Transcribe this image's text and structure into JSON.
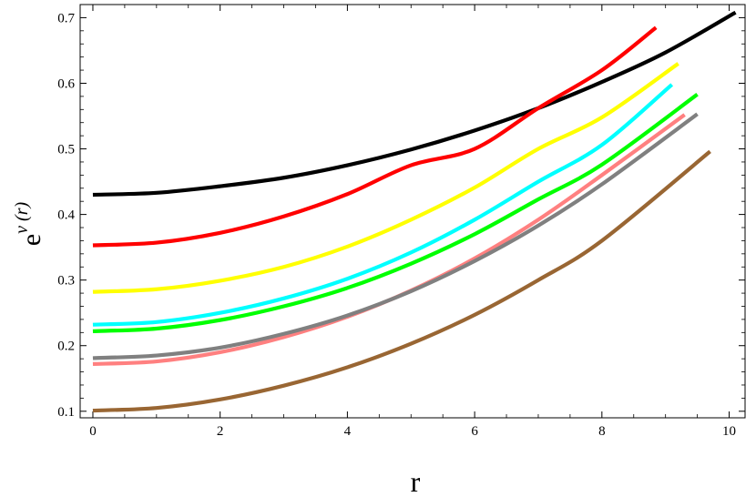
{
  "chart_data": {
    "type": "line",
    "title": "",
    "xlabel": "r",
    "ylabel": "e^{ν(r)}",
    "ylabel_base": "e",
    "ylabel_exponent": "ν (r)",
    "xlim": [
      -0.2,
      10.25
    ],
    "ylim": [
      0.09,
      0.72
    ],
    "xticks": [
      0,
      2,
      4,
      6,
      8,
      10
    ],
    "yticks": [
      0.1,
      0.2,
      0.3,
      0.4,
      0.5,
      0.6,
      0.7
    ],
    "xtick_labels": [
      "0",
      "2",
      "4",
      "6",
      "8",
      "10"
    ],
    "ytick_labels": [
      "0.1",
      "0.2",
      "0.3",
      "0.4",
      "0.5",
      "0.6",
      "0.7"
    ],
    "grid": false,
    "legend": "none",
    "series": [
      {
        "color": "#000000",
        "x": [
          0,
          1,
          2,
          3,
          4,
          5,
          6,
          7,
          8,
          9,
          10.1
        ],
        "y": [
          0.43,
          0.433,
          0.443,
          0.456,
          0.475,
          0.499,
          0.528,
          0.562,
          0.602,
          0.647,
          0.708
        ]
      },
      {
        "color": "#ff0000",
        "x": [
          0,
          1,
          2,
          3,
          4,
          5,
          6,
          7,
          8,
          8.85
        ],
        "y": [
          0.353,
          0.357,
          0.372,
          0.397,
          0.431,
          0.475,
          0.5,
          0.562,
          0.62,
          0.685
        ]
      },
      {
        "color": "#ffff00",
        "x": [
          0,
          1,
          2,
          3,
          4,
          5,
          6,
          7,
          8,
          9.2
        ],
        "y": [
          0.282,
          0.286,
          0.299,
          0.32,
          0.351,
          0.392,
          0.441,
          0.5,
          0.548,
          0.63
        ]
      },
      {
        "color": "#00ffff",
        "x": [
          0,
          1,
          2,
          3,
          4,
          5,
          6,
          7,
          8,
          9.1
        ],
        "y": [
          0.232,
          0.236,
          0.25,
          0.272,
          0.302,
          0.342,
          0.392,
          0.45,
          0.506,
          0.598
        ]
      },
      {
        "color": "#00ff00",
        "x": [
          0,
          1,
          2,
          3,
          4,
          5,
          6,
          7,
          8,
          9.5
        ],
        "y": [
          0.222,
          0.226,
          0.239,
          0.26,
          0.288,
          0.325,
          0.37,
          0.423,
          0.476,
          0.583
        ]
      },
      {
        "color": "#ff8080",
        "x": [
          0,
          1,
          2,
          3,
          4,
          5,
          6,
          7,
          8,
          9.3
        ],
        "y": [
          0.172,
          0.176,
          0.19,
          0.213,
          0.244,
          0.284,
          0.333,
          0.392,
          0.46,
          0.552
        ]
      },
      {
        "color": "#808080",
        "x": [
          0,
          1,
          2,
          3,
          4,
          5,
          6,
          7,
          8,
          9.5
        ],
        "y": [
          0.181,
          0.185,
          0.197,
          0.218,
          0.246,
          0.283,
          0.329,
          0.383,
          0.446,
          0.553
        ]
      },
      {
        "color": "#996633",
        "x": [
          0,
          1,
          2,
          3,
          4,
          5,
          6,
          7,
          8,
          9.7
        ],
        "y": [
          0.101,
          0.105,
          0.118,
          0.139,
          0.167,
          0.203,
          0.247,
          0.3,
          0.36,
          0.496
        ]
      }
    ]
  }
}
